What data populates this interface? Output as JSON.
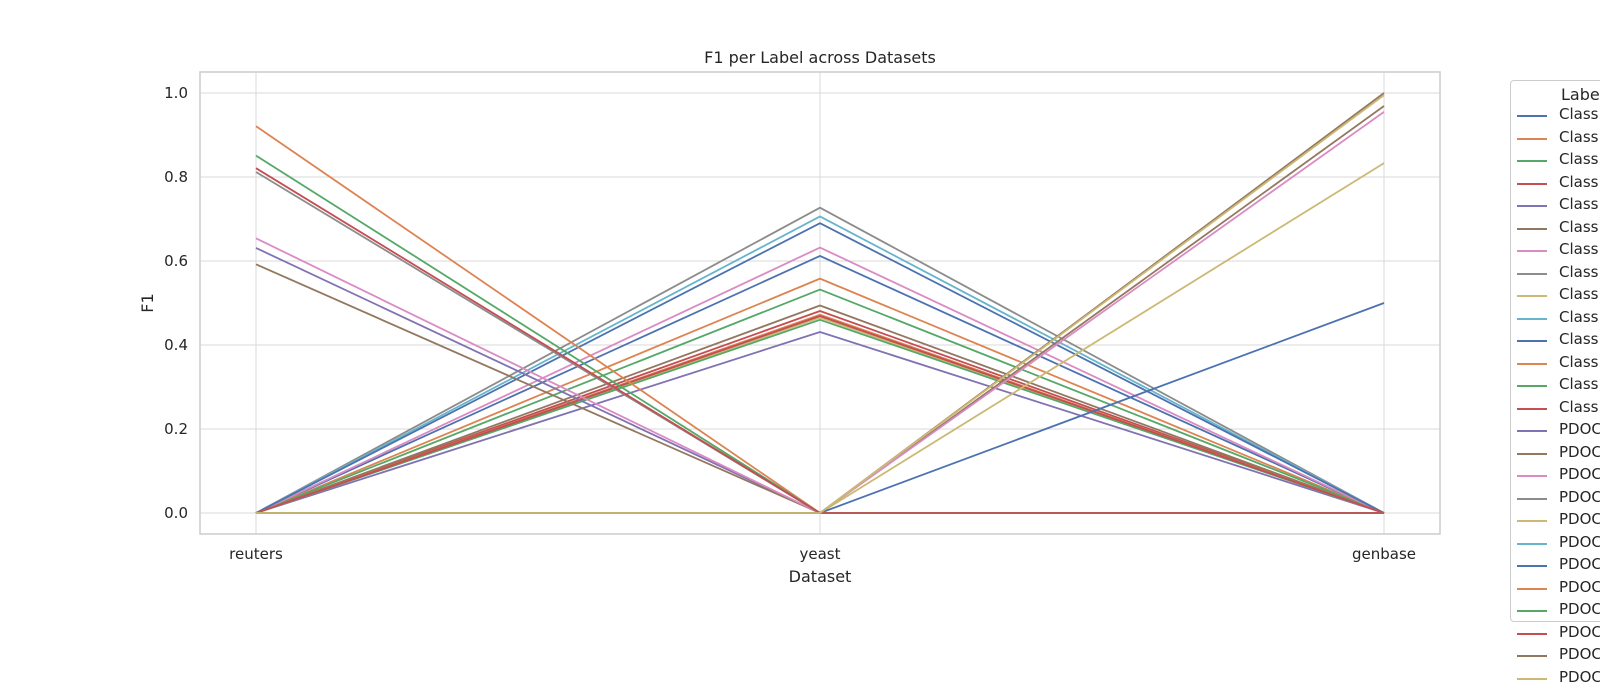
{
  "chart_data": {
    "type": "line",
    "title": "F1 per Label across Datasets",
    "xlabel": "Dataset",
    "ylabel": "F1",
    "categories": [
      "reuters",
      "yeast",
      "genbase"
    ],
    "ylim": [
      -0.05,
      1.05
    ],
    "yticks": [
      "0.0",
      "0.2",
      "0.4",
      "0.6",
      "0.8",
      "1.0"
    ],
    "grid": true,
    "legend": {
      "title": "Labe",
      "placement": "right, outside"
    },
    "series": [
      {
        "name": "Class",
        "color": "#4c72b0",
        "values": [
          0.0,
          0.612,
          0.0
        ]
      },
      {
        "name": "Class",
        "color": "#dd8452",
        "values": [
          0.0,
          0.558,
          0.0
        ]
      },
      {
        "name": "Class",
        "color": "#55a868",
        "values": [
          0.0,
          0.532,
          0.0
        ]
      },
      {
        "name": "Class",
        "color": "#c44e52",
        "values": [
          0.0,
          0.481,
          0.0
        ]
      },
      {
        "name": "Class",
        "color": "#8172b3",
        "values": [
          0.0,
          0.431,
          0.0
        ]
      },
      {
        "name": "Class",
        "color": "#937860",
        "values": [
          0.0,
          0.494,
          0.0
        ]
      },
      {
        "name": "Class",
        "color": "#da8bc3",
        "values": [
          0.0,
          0.632,
          0.0
        ]
      },
      {
        "name": "Class",
        "color": "#8c8c8c",
        "values": [
          0.0,
          0.727,
          0.0
        ]
      },
      {
        "name": "Class",
        "color": "#ccb974",
        "values": [
          0.0,
          0.465,
          0.0
        ]
      },
      {
        "name": "Class",
        "color": "#64b5cd",
        "values": [
          0.0,
          0.706,
          0.0
        ]
      },
      {
        "name": "Class",
        "color": "#4c72b0",
        "values": [
          0.0,
          0.69,
          0.0
        ]
      },
      {
        "name": "Class",
        "color": "#dd8452",
        "values": [
          0.0,
          0.472,
          0.0
        ]
      },
      {
        "name": "Class",
        "color": "#55a868",
        "values": [
          0.0,
          0.46,
          0.0
        ]
      },
      {
        "name": "Class",
        "color": "#c44e52",
        "values": [
          0.0,
          0.469,
          0.0
        ]
      },
      {
        "name": "PDOC",
        "color": "#8172b3",
        "values": [
          0.631,
          0.0,
          0.0
        ]
      },
      {
        "name": "PDOC",
        "color": "#937860",
        "values": [
          0.592,
          0.0,
          0.969
        ]
      },
      {
        "name": "PDOC",
        "color": "#da8bc3",
        "values": [
          0.654,
          0.0,
          0.955
        ]
      },
      {
        "name": "PDOC",
        "color": "#8c8c8c",
        "values": [
          0.812,
          0.0,
          0.0
        ]
      },
      {
        "name": "PDOC",
        "color": "#ccb974",
        "values": [
          0.0,
          0.0,
          0.833
        ]
      },
      {
        "name": "PDOC",
        "color": "#64b5cd",
        "values": [
          0.0,
          0.0,
          0.0
        ]
      },
      {
        "name": "PDOC",
        "color": "#4c72b0",
        "values": [
          0.0,
          0.0,
          0.5
        ]
      },
      {
        "name": "PDOC",
        "color": "#dd8452",
        "values": [
          0.921,
          0.0,
          0.0
        ]
      },
      {
        "name": "PDOC",
        "color": "#55a868",
        "values": [
          0.851,
          0.0,
          0.0
        ]
      },
      {
        "name": "PDOC",
        "color": "#c44e52",
        "values": [
          0.821,
          0.0,
          0.0
        ]
      },
      {
        "name": "PDOC",
        "color": "#937860",
        "values": [
          0.0,
          0.0,
          1.0
        ]
      },
      {
        "name": "PDOC",
        "color": "#ccb974",
        "values": [
          0.0,
          0.0,
          0.995
        ]
      }
    ]
  }
}
